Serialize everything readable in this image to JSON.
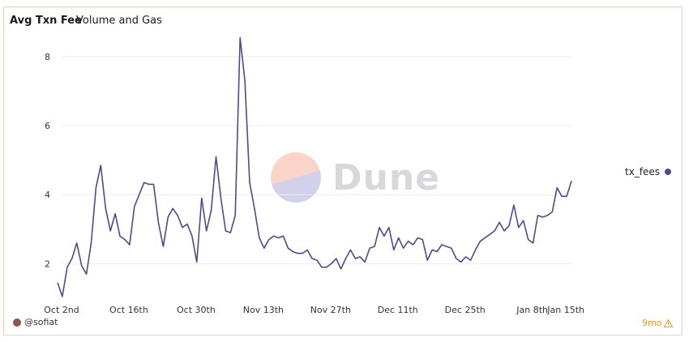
{
  "header": {
    "title": "Avg Txn Fee",
    "subtitle": "Volume and Gas"
  },
  "watermark": {
    "text": "Dune"
  },
  "footer": {
    "author": "@sofiat",
    "age": "9mo"
  },
  "icons": {
    "avatar": "user-avatar",
    "age": "warning-icon"
  },
  "colors": {
    "line": "#4f4a8c",
    "grid": "#ececec"
  },
  "chart_data": {
    "type": "line",
    "xlabel": "",
    "ylabel": "",
    "ylim": [
      1,
      8.7
    ],
    "yticks": [
      2,
      4,
      6,
      8
    ],
    "grid": true,
    "legend_position": "right",
    "xtick_labels": [
      "Oct 2nd",
      "Oct 16th",
      "Oct 30th",
      "Nov 13th",
      "Nov 27th",
      "Dec 11th",
      "Dec 25th",
      "Jan 8th",
      "Jan 15th"
    ],
    "xtick_index": [
      0,
      14,
      28,
      42,
      56,
      70,
      84,
      98,
      105
    ],
    "series": [
      {
        "name": "tx_fees",
        "values": [
          1.45,
          1.05,
          1.9,
          2.15,
          2.6,
          1.95,
          1.7,
          2.6,
          4.2,
          4.85,
          3.6,
          2.95,
          3.45,
          2.8,
          2.7,
          2.55,
          3.65,
          4.0,
          4.35,
          4.3,
          4.3,
          3.2,
          2.5,
          3.35,
          3.6,
          3.4,
          3.05,
          3.15,
          2.8,
          2.05,
          3.9,
          2.95,
          3.55,
          5.1,
          3.9,
          2.95,
          2.9,
          3.4,
          8.55,
          7.3,
          4.35,
          3.6,
          2.75,
          2.45,
          2.7,
          2.8,
          2.75,
          2.8,
          2.45,
          2.35,
          2.3,
          2.3,
          2.4,
          2.15,
          2.1,
          1.9,
          1.9,
          2.0,
          2.15,
          1.85,
          2.15,
          2.4,
          2.15,
          2.2,
          2.05,
          2.45,
          2.5,
          3.05,
          2.8,
          3.05,
          2.4,
          2.75,
          2.45,
          2.65,
          2.55,
          2.75,
          2.7,
          2.1,
          2.4,
          2.35,
          2.55,
          2.5,
          2.45,
          2.15,
          2.05,
          2.2,
          2.1,
          2.4,
          2.65,
          2.75,
          2.85,
          2.95,
          3.2,
          2.95,
          3.1,
          3.7,
          3.05,
          3.25,
          2.7,
          2.6,
          3.4,
          3.35,
          3.4,
          3.5,
          4.2,
          3.95,
          3.95,
          4.4
        ]
      }
    ]
  }
}
